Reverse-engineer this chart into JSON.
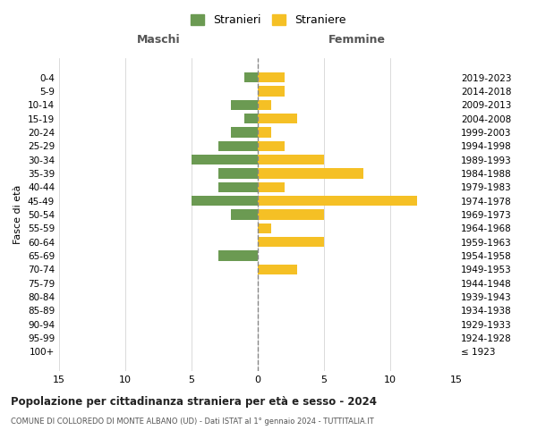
{
  "age_groups": [
    "100+",
    "95-99",
    "90-94",
    "85-89",
    "80-84",
    "75-79",
    "70-74",
    "65-69",
    "60-64",
    "55-59",
    "50-54",
    "45-49",
    "40-44",
    "35-39",
    "30-34",
    "25-29",
    "20-24",
    "15-19",
    "10-14",
    "5-9",
    "0-4"
  ],
  "birth_years": [
    "≤ 1923",
    "1924-1928",
    "1929-1933",
    "1934-1938",
    "1939-1943",
    "1944-1948",
    "1949-1953",
    "1954-1958",
    "1959-1963",
    "1964-1968",
    "1969-1973",
    "1974-1978",
    "1979-1983",
    "1984-1988",
    "1989-1993",
    "1994-1998",
    "1999-2003",
    "2004-2008",
    "2009-2013",
    "2014-2018",
    "2019-2023"
  ],
  "maschi": [
    0,
    0,
    0,
    0,
    0,
    0,
    0,
    3,
    0,
    0,
    2,
    5,
    3,
    3,
    5,
    3,
    2,
    1,
    2,
    0,
    1
  ],
  "femmine": [
    0,
    0,
    0,
    0,
    0,
    0,
    3,
    0,
    5,
    1,
    5,
    12,
    2,
    8,
    5,
    2,
    1,
    3,
    1,
    2,
    2
  ],
  "maschi_color": "#6b9a52",
  "femmine_color": "#f5c025",
  "title": "Popolazione per cittadinanza straniera per età e sesso - 2024",
  "subtitle": "COMUNE DI COLLOREDO DI MONTE ALBANO (UD) - Dati ISTAT al 1° gennaio 2024 - TUTTITALIA.IT",
  "legend_maschi": "Stranieri",
  "legend_femmine": "Straniere",
  "xlabel_left": "Maschi",
  "xlabel_right": "Femmine",
  "ylabel_left": "Fasce di età",
  "xlim": 15,
  "bg_color": "#ffffff",
  "grid_color": "#cccccc",
  "bar_height": 0.75
}
